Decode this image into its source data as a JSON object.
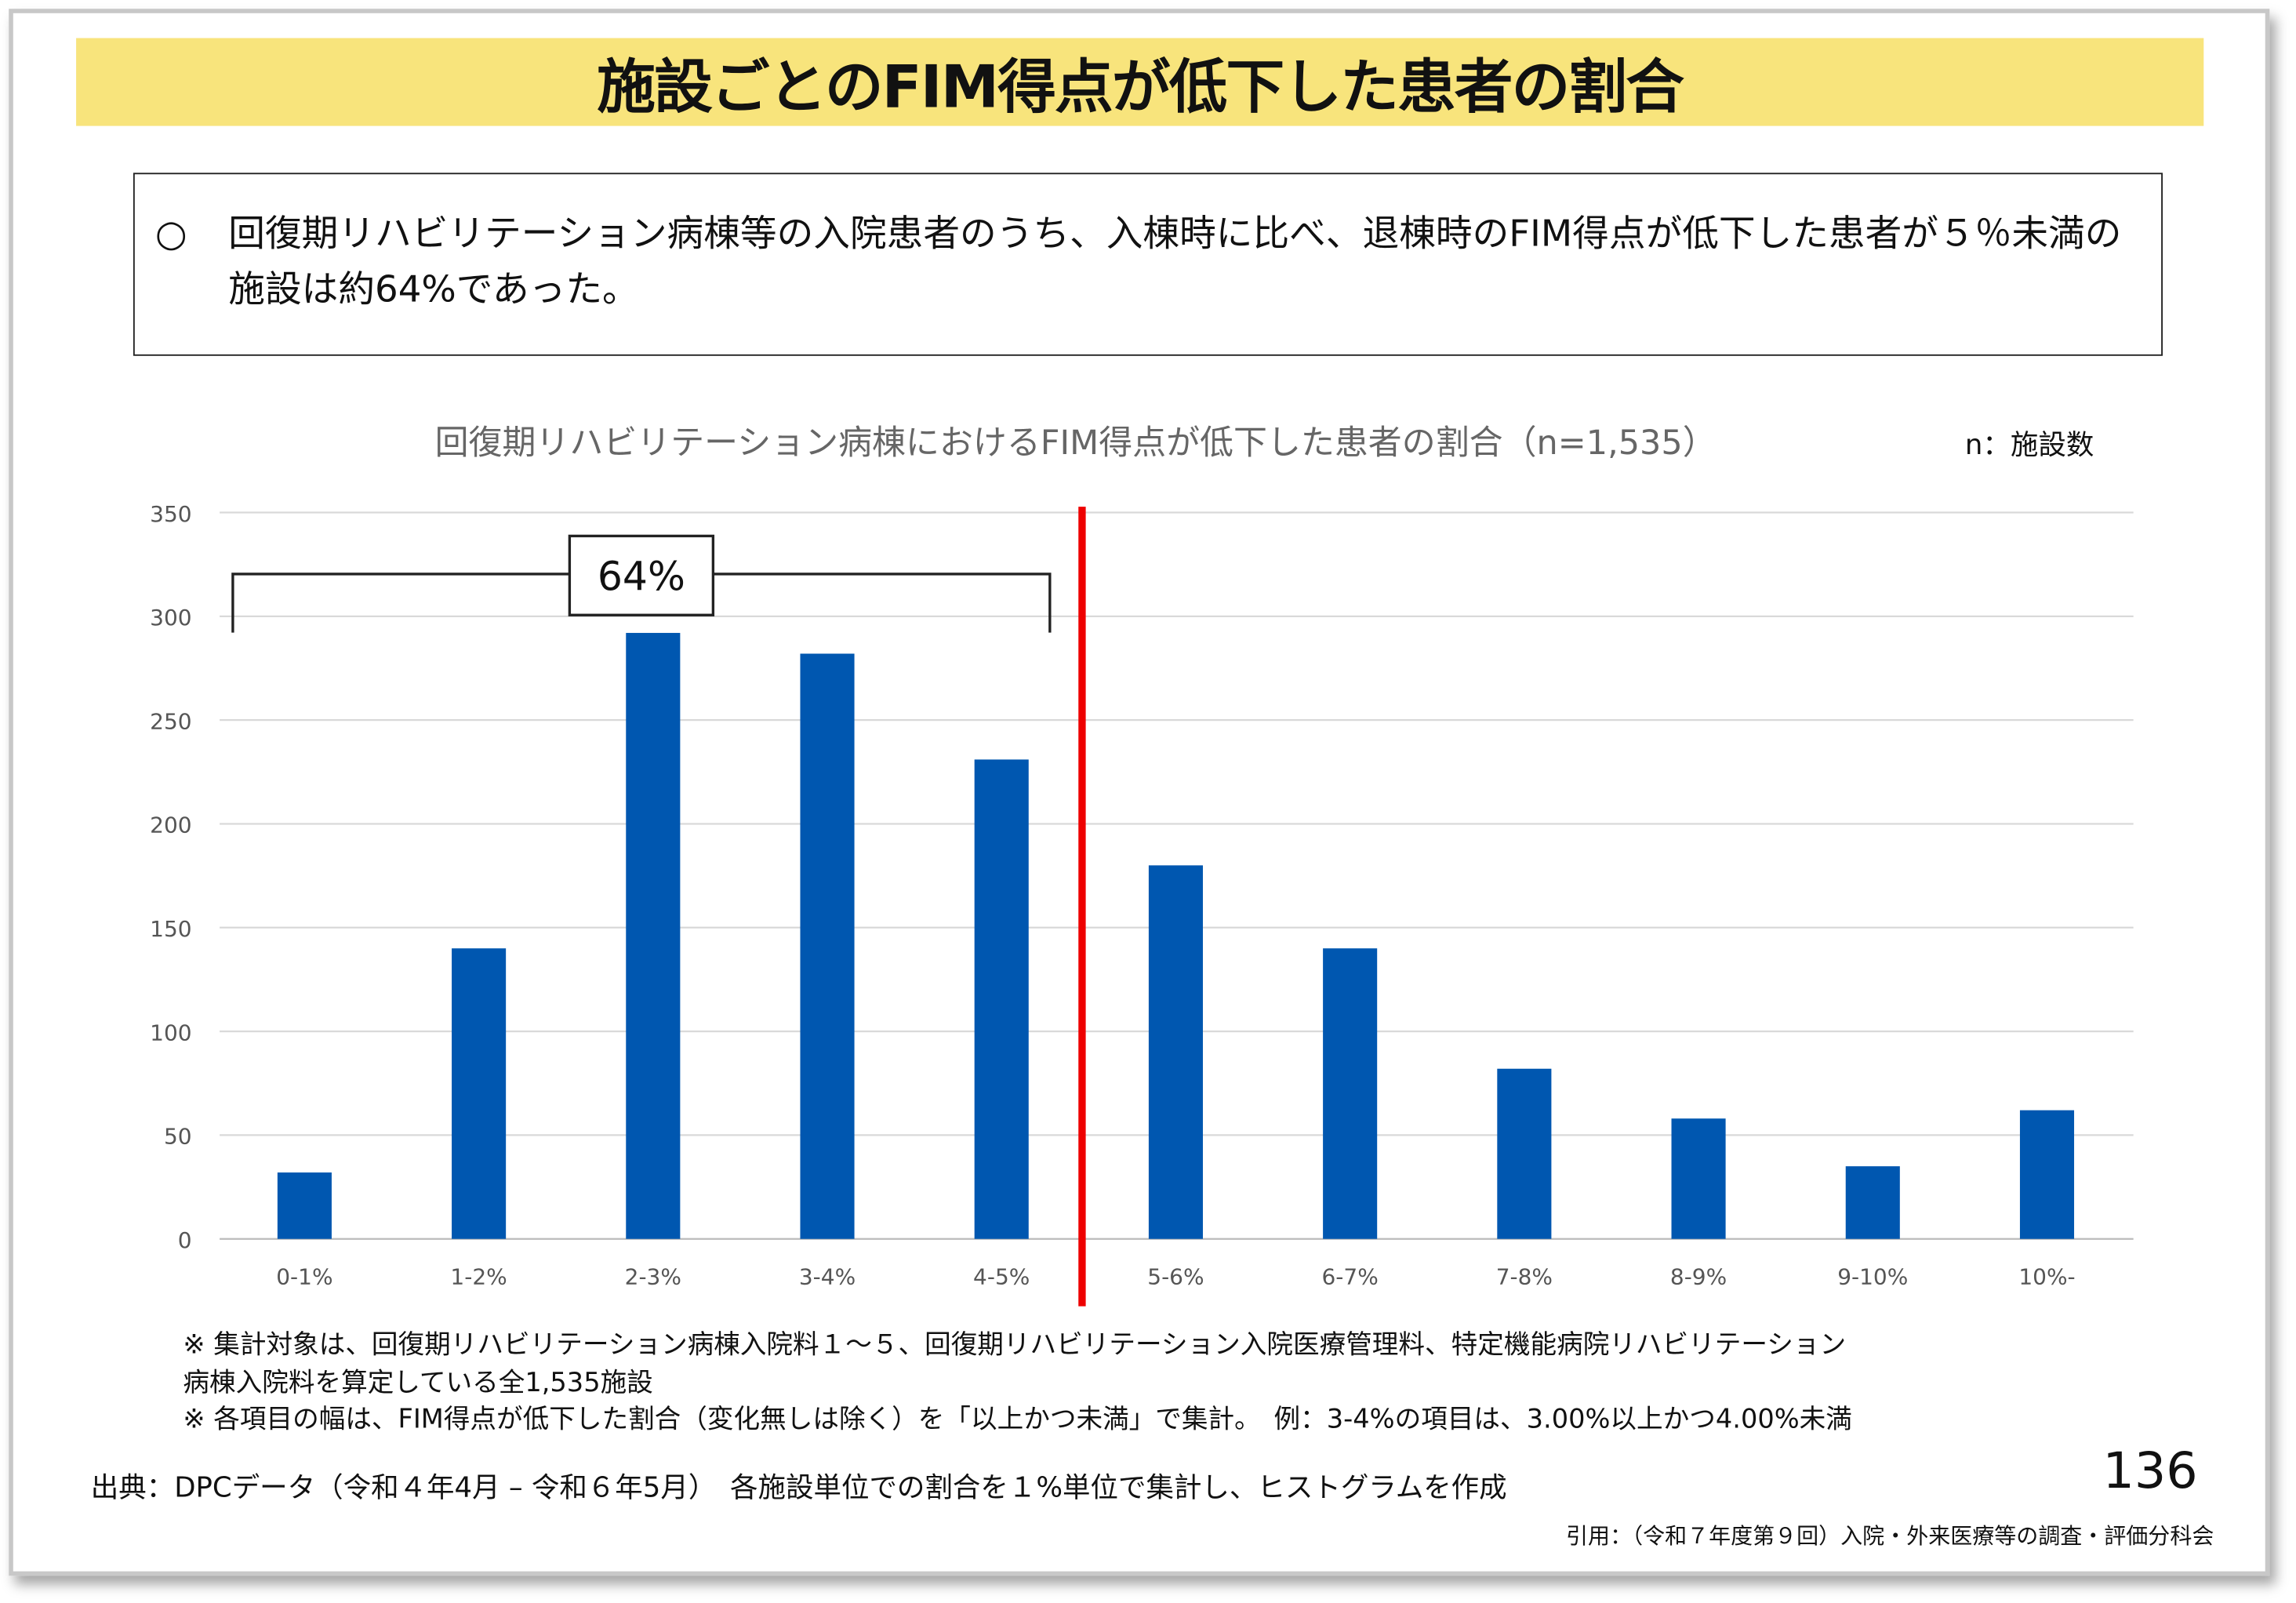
{
  "title": "施設ごとのFIM得点が低下した患者の割合",
  "summary": {
    "bullet": "○",
    "text": "回復期リハビリテーション病棟等の入院患者のうち、入棟時に比べ、退棟時のFIM得点が低下した患者が５％未満の施設は約64%であった。"
  },
  "n_label": "n：施設数",
  "chart_data": {
    "type": "bar",
    "title": "回復期リハビリテーション病棟におけるFIM得点が低下した患者の割合（n=1,535）",
    "xlabel": "",
    "ylabel": "",
    "categories": [
      "0-1%",
      "1-2%",
      "2-3%",
      "3-4%",
      "4-5%",
      "5-6%",
      "6-7%",
      "7-8%",
      "8-9%",
      "9-10%",
      "10%-"
    ],
    "values": [
      32,
      140,
      292,
      282,
      231,
      180,
      140,
      82,
      58,
      35,
      62
    ],
    "ylim": [
      0,
      350
    ],
    "yticks": [
      0,
      50,
      100,
      150,
      200,
      250,
      300,
      350
    ],
    "grid": true,
    "bar_color": "#0057b0",
    "annotations": [
      {
        "type": "bracket",
        "label": "64%",
        "from": "0-1%",
        "to": "4-5%"
      },
      {
        "type": "vline",
        "between": [
          "4-5%",
          "5-6%"
        ],
        "color": "#ee0000"
      }
    ]
  },
  "notes": [
    "※ 集計対象は、回復期リハビリテーション病棟入院料１～５、回復期リハビリテーション入院医療管理料、特定機能病院リハビリテーション",
    "病棟入院料を算定している全1,535施設",
    "※ 各項目の幅は、FIM得点が低下した割合（変化無しは除く）を「以上かつ未満」で集計。　例：3-4%の項目は、3.00%以上かつ4.00%未満"
  ],
  "source": "出典：DPCデータ（令和４年4月 – 令和６年5月）　各施設単位での割合を１%単位で集計し、ヒストグラムを作成",
  "page_number": "136",
  "citation": "引用：（令和７年度第９回）入院・外来医療等の調査・評価分科会"
}
